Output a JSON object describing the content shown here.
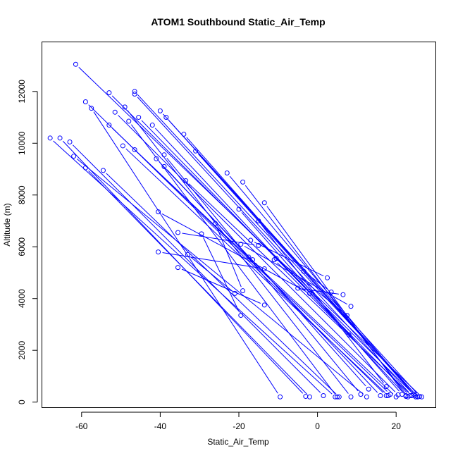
{
  "chart_data": {
    "type": "line",
    "title": "ATOM1 Southbound Static_Air_Temp",
    "xlabel": "Static_Air_Temp",
    "ylabel": "Altitude (m)",
    "xlim": [
      -70,
      30
    ],
    "ylim": [
      -200,
      13900
    ],
    "xticks": [
      -60,
      -40,
      -20,
      0,
      20
    ],
    "yticks": [
      0,
      2000,
      4000,
      6000,
      8000,
      10000,
      12000
    ],
    "color": "#0000ff",
    "markers": "open-circle",
    "series": [
      {
        "x": [
          -61.5,
          26.5
        ],
        "y": [
          13050,
          200
        ]
      },
      {
        "x": [
          -46.5,
          25.5
        ],
        "y": [
          12000,
          200
        ]
      },
      {
        "x": [
          -53.0,
          24.8
        ],
        "y": [
          11950,
          250
        ]
      },
      {
        "x": [
          -46.5,
          24.0
        ],
        "y": [
          11900,
          250
        ]
      },
      {
        "x": [
          -59.0,
          17.5
        ],
        "y": [
          11600,
          250
        ]
      },
      {
        "x": [
          -57.5,
          -9.5
        ],
        "y": [
          11350,
          200
        ]
      },
      {
        "x": [
          -49.0,
          8.5
        ],
        "y": [
          11400,
          200
        ]
      },
      {
        "x": [
          -51.5,
          20.5
        ],
        "y": [
          11200,
          280
        ]
      },
      {
        "x": [
          -48.0,
          5.0
        ],
        "y": [
          10850,
          200
        ]
      },
      {
        "x": [
          -53.0,
          18.5
        ],
        "y": [
          10700,
          300
        ]
      },
      {
        "x": [
          -45.5,
          23.5
        ],
        "y": [
          11000,
          250
        ]
      },
      {
        "x": [
          -40.0,
          25.5
        ],
        "y": [
          11250,
          200
        ]
      },
      {
        "x": [
          -38.5,
          26.0
        ],
        "y": [
          11000,
          220
        ]
      },
      {
        "x": [
          -42.0,
          22.5
        ],
        "y": [
          10700,
          250
        ]
      },
      {
        "x": [
          -34.0,
          25.0
        ],
        "y": [
          10350,
          200
        ]
      },
      {
        "x": [
          -68.0,
          4.5
        ],
        "y": [
          10200,
          200
        ]
      },
      {
        "x": [
          -65.5,
          -3.0
        ],
        "y": [
          10200,
          220
        ]
      },
      {
        "x": [
          -63.0,
          1.5
        ],
        "y": [
          10050,
          250
        ]
      },
      {
        "x": [
          -62.0,
          12.5
        ],
        "y": [
          9500,
          200
        ]
      },
      {
        "x": [
          -49.5,
          18.0
        ],
        "y": [
          9900,
          250
        ]
      },
      {
        "x": [
          -46.5,
          20.0
        ],
        "y": [
          9750,
          200
        ]
      },
      {
        "x": [
          -31.0,
          24.5
        ],
        "y": [
          9700,
          300
        ]
      },
      {
        "x": [
          -59.0,
          -2.0
        ],
        "y": [
          9050,
          200
        ]
      },
      {
        "x": [
          -54.5,
          5.5
        ],
        "y": [
          8950,
          200
        ]
      },
      {
        "x": [
          -41.0,
          16.0
        ],
        "y": [
          9400,
          250
        ]
      },
      {
        "x": [
          -39.0,
          11.0
        ],
        "y": [
          9550,
          300
        ]
      },
      {
        "x": [
          -33.5,
          24.0
        ],
        "y": [
          8550,
          250
        ]
      },
      {
        "x": [
          -23.0,
          25.0
        ],
        "y": [
          8850,
          200
        ]
      },
      {
        "x": [
          -19.0,
          23.0
        ],
        "y": [
          8500,
          200
        ]
      },
      {
        "x": [
          -13.5,
          22.5
        ],
        "y": [
          7700,
          220
        ]
      },
      {
        "x": [
          -40.5,
          -2.0
        ],
        "y": [
          7350,
          4200
        ]
      },
      {
        "x": [
          -39.0,
          -17.5
        ],
        "y": [
          9100,
          5600
        ]
      },
      {
        "x": [
          -35.5,
          -15.0
        ],
        "y": [
          6550,
          6050
        ]
      },
      {
        "x": [
          -40.5,
          -13.5
        ],
        "y": [
          5800,
          5150
        ]
      },
      {
        "x": [
          -35.5,
          -13.5
        ],
        "y": [
          5200,
          3750
        ]
      },
      {
        "x": [
          -29.5,
          -19.5
        ],
        "y": [
          6500,
          3350
        ]
      },
      {
        "x": [
          -26.0,
          -19.0
        ],
        "y": [
          6900,
          4300
        ]
      },
      {
        "x": [
          -33.0,
          -21.0
        ],
        "y": [
          5700,
          4200
        ]
      },
      {
        "x": [
          -19.5,
          8.5
        ],
        "y": [
          6100,
          3700
        ]
      },
      {
        "x": [
          -17.0,
          2.5
        ],
        "y": [
          6250,
          4800
        ]
      },
      {
        "x": [
          -16.5,
          13.0
        ],
        "y": [
          5500,
          500
        ]
      },
      {
        "x": [
          -11.0,
          8.0
        ],
        "y": [
          5500,
          2600
        ]
      },
      {
        "x": [
          -10.5,
          7.5
        ],
        "y": [
          5550,
          3350
        ]
      },
      {
        "x": [
          -5.0,
          6.5
        ],
        "y": [
          4400,
          4150
        ]
      },
      {
        "x": [
          -3.5,
          3.5
        ],
        "y": [
          5050,
          4250
        ]
      },
      {
        "x": [
          -15.0,
          17.5
        ],
        "y": [
          7000,
          600
        ]
      },
      {
        "x": [
          -20.0,
          21.5
        ],
        "y": [
          7450,
          300
        ]
      }
    ]
  }
}
